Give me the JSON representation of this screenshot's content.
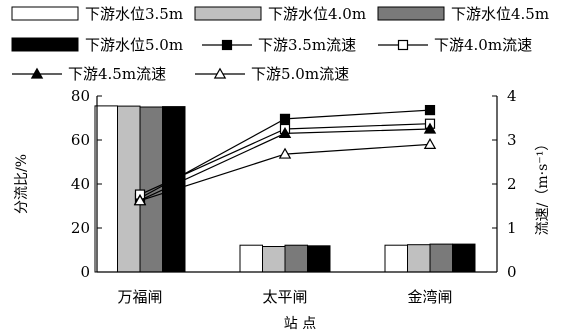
{
  "chart_data": {
    "type": "bar+line",
    "categories": [
      "万福闸",
      "太平闸",
      "金湾闸"
    ],
    "xlabel": "站 点",
    "ylabel_left": "分流比/%",
    "ylabel_right": "流速/（m·s⁻¹）",
    "ylim_left": [
      0,
      80
    ],
    "ylim_right": [
      0,
      4
    ],
    "yticks_left": [
      "0",
      "20",
      "40",
      "60",
      "80"
    ],
    "yticks_right": [
      "0",
      "1",
      "2",
      "3",
      "4"
    ],
    "bar_series": [
      {
        "name": "下游水位3.5m",
        "color": "#ffffff",
        "values": [
          75.5,
          12.2,
          12.2
        ]
      },
      {
        "name": "下游水位4.0m",
        "color": "#c0c0c0",
        "values": [
          75.4,
          11.6,
          12.4
        ]
      },
      {
        "name": "下游水位4.5m",
        "color": "#7a7a7a",
        "values": [
          75.0,
          12.2,
          12.7
        ]
      },
      {
        "name": "下游水位5.0m",
        "color": "#000000",
        "values": [
          75.2,
          11.9,
          12.7
        ]
      }
    ],
    "line_series": [
      {
        "name": "下游3.5m流速",
        "marker": "square-filled",
        "values": [
          1.68,
          3.48,
          3.68
        ]
      },
      {
        "name": "下游4.0m流速",
        "marker": "square-open",
        "values": [
          1.76,
          3.25,
          3.37
        ]
      },
      {
        "name": "下游4.5m流速",
        "marker": "triangle-filled",
        "values": [
          1.63,
          3.15,
          3.25
        ]
      },
      {
        "name": "下游5.0m流速",
        "marker": "triangle-open",
        "values": [
          1.62,
          2.68,
          2.9
        ]
      }
    ]
  }
}
